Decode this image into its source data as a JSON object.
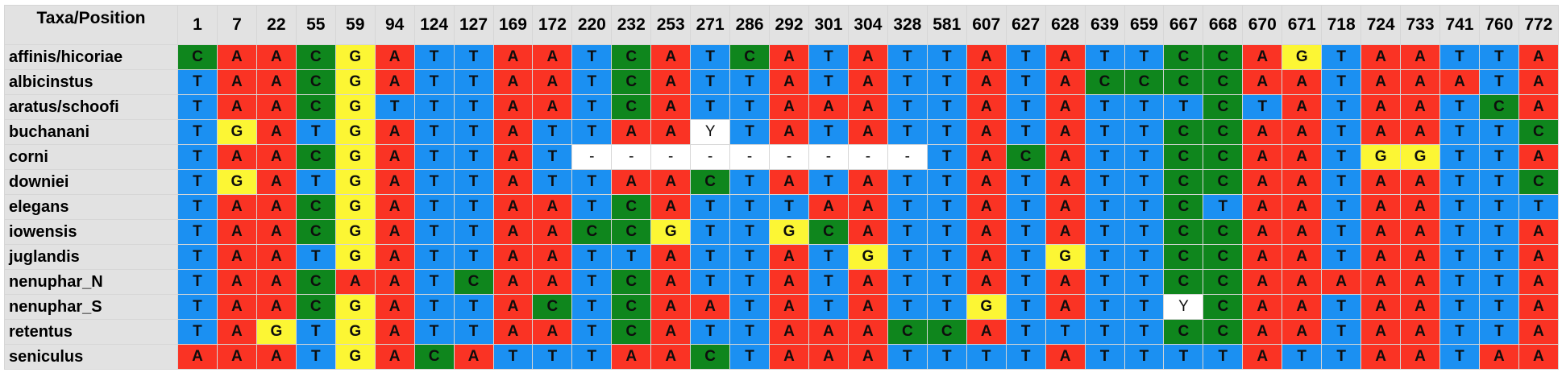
{
  "header_label": "Taxa/Position",
  "positions": [
    "1",
    "7",
    "22",
    "55",
    "59",
    "94",
    "124",
    "127",
    "169",
    "172",
    "220",
    "232",
    "253",
    "271",
    "286",
    "292",
    "301",
    "304",
    "328",
    "581",
    "607",
    "627",
    "628",
    "639",
    "659",
    "667",
    "668",
    "670",
    "671",
    "718",
    "724",
    "733",
    "741",
    "760",
    "772"
  ],
  "taxa": [
    {
      "name": "affinis/hicoriae",
      "bases": [
        "C",
        "A",
        "A",
        "C",
        "G",
        "A",
        "T",
        "T",
        "A",
        "A",
        "T",
        "C",
        "A",
        "T",
        "C",
        "A",
        "T",
        "A",
        "T",
        "T",
        "A",
        "T",
        "A",
        "T",
        "T",
        "C",
        "C",
        "A",
        "G",
        "T",
        "A",
        "A",
        "T",
        "T",
        "A"
      ]
    },
    {
      "name": "albicinstus",
      "bases": [
        "T",
        "A",
        "A",
        "C",
        "G",
        "A",
        "T",
        "T",
        "A",
        "A",
        "T",
        "C",
        "A",
        "T",
        "T",
        "A",
        "T",
        "A",
        "T",
        "T",
        "A",
        "T",
        "A",
        "C",
        "C",
        "C",
        "C",
        "A",
        "A",
        "T",
        "A",
        "A",
        "A",
        "T",
        "A"
      ]
    },
    {
      "name": "aratus/schoofi",
      "bases": [
        "T",
        "A",
        "A",
        "C",
        "G",
        "T",
        "T",
        "T",
        "A",
        "A",
        "T",
        "C",
        "A",
        "T",
        "T",
        "A",
        "A",
        "A",
        "T",
        "T",
        "A",
        "T",
        "A",
        "T",
        "T",
        "T",
        "C",
        "T",
        "A",
        "T",
        "A",
        "A",
        "T",
        "C",
        "A"
      ]
    },
    {
      "name": "buchanani",
      "bases": [
        "T",
        "G",
        "A",
        "T",
        "G",
        "A",
        "T",
        "T",
        "A",
        "T",
        "T",
        "A",
        "A",
        "Y",
        "T",
        "A",
        "T",
        "A",
        "T",
        "T",
        "A",
        "T",
        "A",
        "T",
        "T",
        "C",
        "C",
        "A",
        "A",
        "T",
        "A",
        "A",
        "T",
        "T",
        "C"
      ]
    },
    {
      "name": "corni",
      "bases": [
        "T",
        "A",
        "A",
        "C",
        "G",
        "A",
        "T",
        "T",
        "A",
        "T",
        "-",
        "-",
        "-",
        "-",
        "-",
        "-",
        "-",
        "-",
        "-",
        "T",
        "A",
        "C",
        "A",
        "T",
        "T",
        "C",
        "C",
        "A",
        "A",
        "T",
        "G",
        "G",
        "T",
        "T",
        "A"
      ]
    },
    {
      "name": "downiei",
      "bases": [
        "T",
        "G",
        "A",
        "T",
        "G",
        "A",
        "T",
        "T",
        "A",
        "T",
        "T",
        "A",
        "A",
        "C",
        "T",
        "A",
        "T",
        "A",
        "T",
        "T",
        "A",
        "T",
        "A",
        "T",
        "T",
        "C",
        "C",
        "A",
        "A",
        "T",
        "A",
        "A",
        "T",
        "T",
        "C"
      ]
    },
    {
      "name": "elegans",
      "bases": [
        "T",
        "A",
        "A",
        "C",
        "G",
        "A",
        "T",
        "T",
        "A",
        "A",
        "T",
        "C",
        "A",
        "T",
        "T",
        "T",
        "A",
        "A",
        "T",
        "T",
        "A",
        "T",
        "A",
        "T",
        "T",
        "C",
        "T",
        "A",
        "A",
        "T",
        "A",
        "A",
        "T",
        "T",
        "T"
      ]
    },
    {
      "name": "iowensis",
      "bases": [
        "T",
        "A",
        "A",
        "C",
        "G",
        "A",
        "T",
        "T",
        "A",
        "A",
        "C",
        "C",
        "G",
        "T",
        "T",
        "G",
        "C",
        "A",
        "T",
        "T",
        "A",
        "T",
        "A",
        "T",
        "T",
        "C",
        "C",
        "A",
        "A",
        "T",
        "A",
        "A",
        "T",
        "T",
        "A"
      ]
    },
    {
      "name": "juglandis",
      "bases": [
        "T",
        "A",
        "A",
        "T",
        "G",
        "A",
        "T",
        "T",
        "A",
        "A",
        "T",
        "T",
        "A",
        "T",
        "T",
        "A",
        "T",
        "G",
        "T",
        "T",
        "A",
        "T",
        "G",
        "T",
        "T",
        "C",
        "C",
        "A",
        "A",
        "T",
        "A",
        "A",
        "T",
        "T",
        "A"
      ]
    },
    {
      "name": "nenuphar_N",
      "bases": [
        "T",
        "A",
        "A",
        "C",
        "A",
        "A",
        "T",
        "C",
        "A",
        "A",
        "T",
        "C",
        "A",
        "T",
        "T",
        "A",
        "T",
        "A",
        "T",
        "T",
        "A",
        "T",
        "A",
        "T",
        "T",
        "C",
        "C",
        "A",
        "A",
        "A",
        "A",
        "A",
        "T",
        "T",
        "A"
      ]
    },
    {
      "name": "nenuphar_S",
      "bases": [
        "T",
        "A",
        "A",
        "C",
        "G",
        "A",
        "T",
        "T",
        "A",
        "C",
        "T",
        "C",
        "A",
        "A",
        "T",
        "A",
        "T",
        "A",
        "T",
        "T",
        "G",
        "T",
        "A",
        "T",
        "T",
        "Y",
        "C",
        "A",
        "A",
        "T",
        "A",
        "A",
        "T",
        "T",
        "A"
      ]
    },
    {
      "name": "retentus",
      "bases": [
        "T",
        "A",
        "G",
        "T",
        "G",
        "A",
        "T",
        "T",
        "A",
        "A",
        "T",
        "C",
        "A",
        "T",
        "T",
        "A",
        "A",
        "A",
        "C",
        "C",
        "A",
        "T",
        "T",
        "T",
        "T",
        "C",
        "C",
        "A",
        "A",
        "T",
        "A",
        "A",
        "T",
        "T",
        "A"
      ]
    },
    {
      "name": "seniculus",
      "bases": [
        "A",
        "A",
        "A",
        "T",
        "G",
        "A",
        "C",
        "A",
        "T",
        "T",
        "T",
        "A",
        "A",
        "C",
        "T",
        "A",
        "A",
        "A",
        "T",
        "T",
        "T",
        "T",
        "A",
        "T",
        "T",
        "T",
        "T",
        "A",
        "T",
        "T",
        "A",
        "A",
        "T",
        "A",
        "A"
      ]
    }
  ]
}
